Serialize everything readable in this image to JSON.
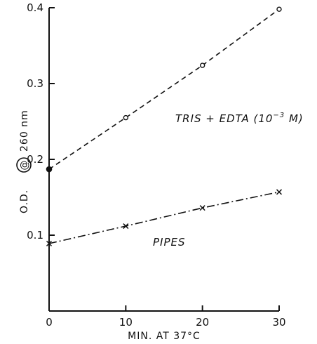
{
  "chart_data": {
    "type": "line",
    "xlabel": "MIN. AT 37°C",
    "ylabel_prefix": "O.D.",
    "ylabel_symbol": "@",
    "ylabel_suffix": "260 nm",
    "xlim": [
      0,
      30
    ],
    "ylim": [
      0,
      0.4
    ],
    "x_ticks": [
      0,
      10,
      20,
      30
    ],
    "x_tick_labels": [
      "0",
      "10",
      "20",
      "30"
    ],
    "y_ticks": [
      0.1,
      0.2,
      0.3,
      0.4
    ],
    "y_tick_labels": [
      "0.1",
      "0.2",
      "0.3",
      "0.4"
    ],
    "grid": false,
    "series": [
      {
        "name": "TRIS + EDTA (10⁻³ M)",
        "name_main": "TRIS + EDTA (10",
        "name_sup": "−3",
        "name_end": " M)",
        "x": [
          0,
          10,
          20,
          30
        ],
        "y": [
          0.187,
          0.255,
          0.324,
          0.398
        ],
        "marker": "circle",
        "first_marker_filled": true,
        "line_style": "dashed"
      },
      {
        "name": "PIPES",
        "x": [
          0,
          10,
          20,
          30
        ],
        "y": [
          0.089,
          0.112,
          0.136,
          0.157
        ],
        "marker": "x",
        "line_style": "dash-dot"
      }
    ]
  }
}
